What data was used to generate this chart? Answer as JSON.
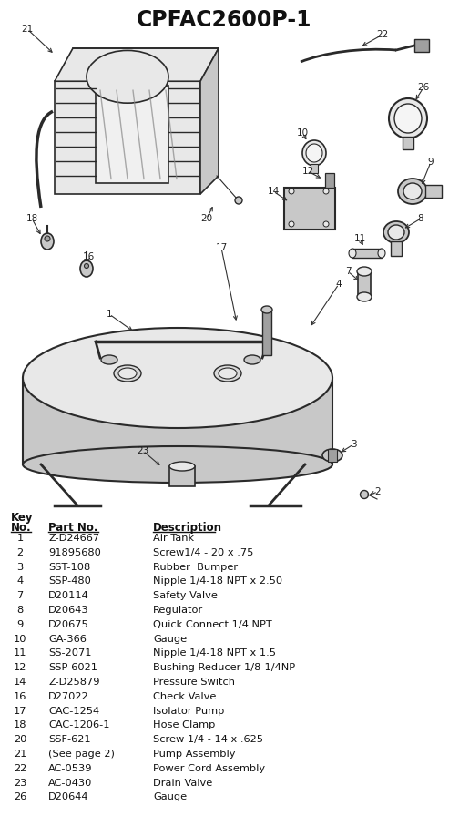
{
  "title": "CPFAC2600P-1",
  "bg_color": "#ffffff",
  "parts": [
    {
      "key": "1",
      "part": "Z-D24667",
      "desc": "Air Tank"
    },
    {
      "key": "2",
      "part": "91895680",
      "desc": "Screw1/4 - 20 x .75"
    },
    {
      "key": "3",
      "part": "SST-108",
      "desc": "Rubber  Bumper"
    },
    {
      "key": "4",
      "part": "SSP-480",
      "desc": "Nipple 1/4-18 NPT x 2.50"
    },
    {
      "key": "7",
      "part": "D20114",
      "desc": "Safety Valve"
    },
    {
      "key": "8",
      "part": "D20643",
      "desc": "Regulator"
    },
    {
      "key": "9",
      "part": "D20675",
      "desc": "Quick Connect 1/4 NPT"
    },
    {
      "key": "10",
      "part": "GA-366",
      "desc": "Gauge"
    },
    {
      "key": "11",
      "part": "SS-2071",
      "desc": "Nipple 1/4-18 NPT x 1.5"
    },
    {
      "key": "12",
      "part": "SSP-6021",
      "desc": "Bushing Reducer 1/8-1/4NP"
    },
    {
      "key": "14",
      "part": "Z-D25879",
      "desc": "Pressure Switch"
    },
    {
      "key": "16",
      "part": "D27022",
      "desc": "Check Valve"
    },
    {
      "key": "17",
      "part": "CAC-1254",
      "desc": "Isolator Pump"
    },
    {
      "key": "18",
      "part": "CAC-1206-1",
      "desc": "Hose Clamp"
    },
    {
      "key": "20",
      "part": "SSF-621",
      "desc": "Screw 1/4 - 14 x .625"
    },
    {
      "key": "21",
      "part": "(See page 2)",
      "desc": "Pump Assembly"
    },
    {
      "key": "22",
      "part": "AC-0539",
      "desc": "Power Cord Assembly"
    },
    {
      "key": "23",
      "part": "AC-0430",
      "desc": "Drain Valve"
    },
    {
      "key": "26",
      "part": "D20644",
      "desc": "Gauge"
    }
  ],
  "line_color": "#2a2a2a",
  "fill_light": "#e8e8e8",
  "fill_mid": "#c8c8c8",
  "fill_dark": "#a0a0a0",
  "label_color": "#333333"
}
